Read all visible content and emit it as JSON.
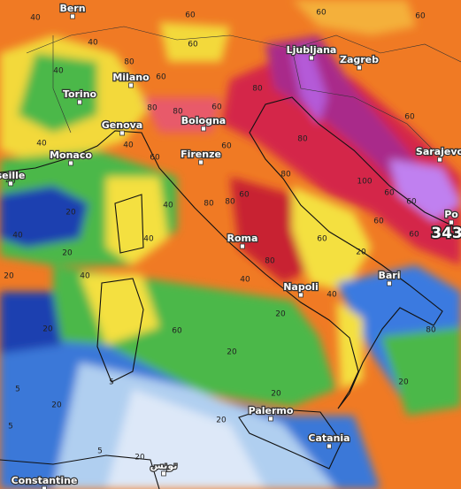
{
  "cities": [
    "Bern",
    "Milano",
    "Torino",
    "Genova",
    "Bologna",
    "Monaco",
    "seille",
    "Firenze",
    "Ljubljana",
    "Zagreb",
    "Sarajevo",
    "Po",
    "Roma",
    "Napoli",
    "Bari",
    "Palermo",
    "Catania",
    "تونس",
    "Constantine"
  ],
  "contour_labels": [
    40,
    60,
    60,
    60,
    40,
    60,
    80,
    40,
    60,
    80,
    80,
    80,
    60,
    60,
    40,
    40,
    60,
    60,
    80,
    40,
    80,
    60,
    80,
    100,
    20,
    40,
    80,
    40,
    40,
    20,
    20,
    40,
    40,
    80,
    60,
    20,
    60,
    60,
    60,
    20,
    20,
    40,
    20,
    5,
    5,
    20,
    5,
    20,
    80,
    20,
    20,
    5,
    20,
    60,
    60
  ],
  "max_label": 343
}
